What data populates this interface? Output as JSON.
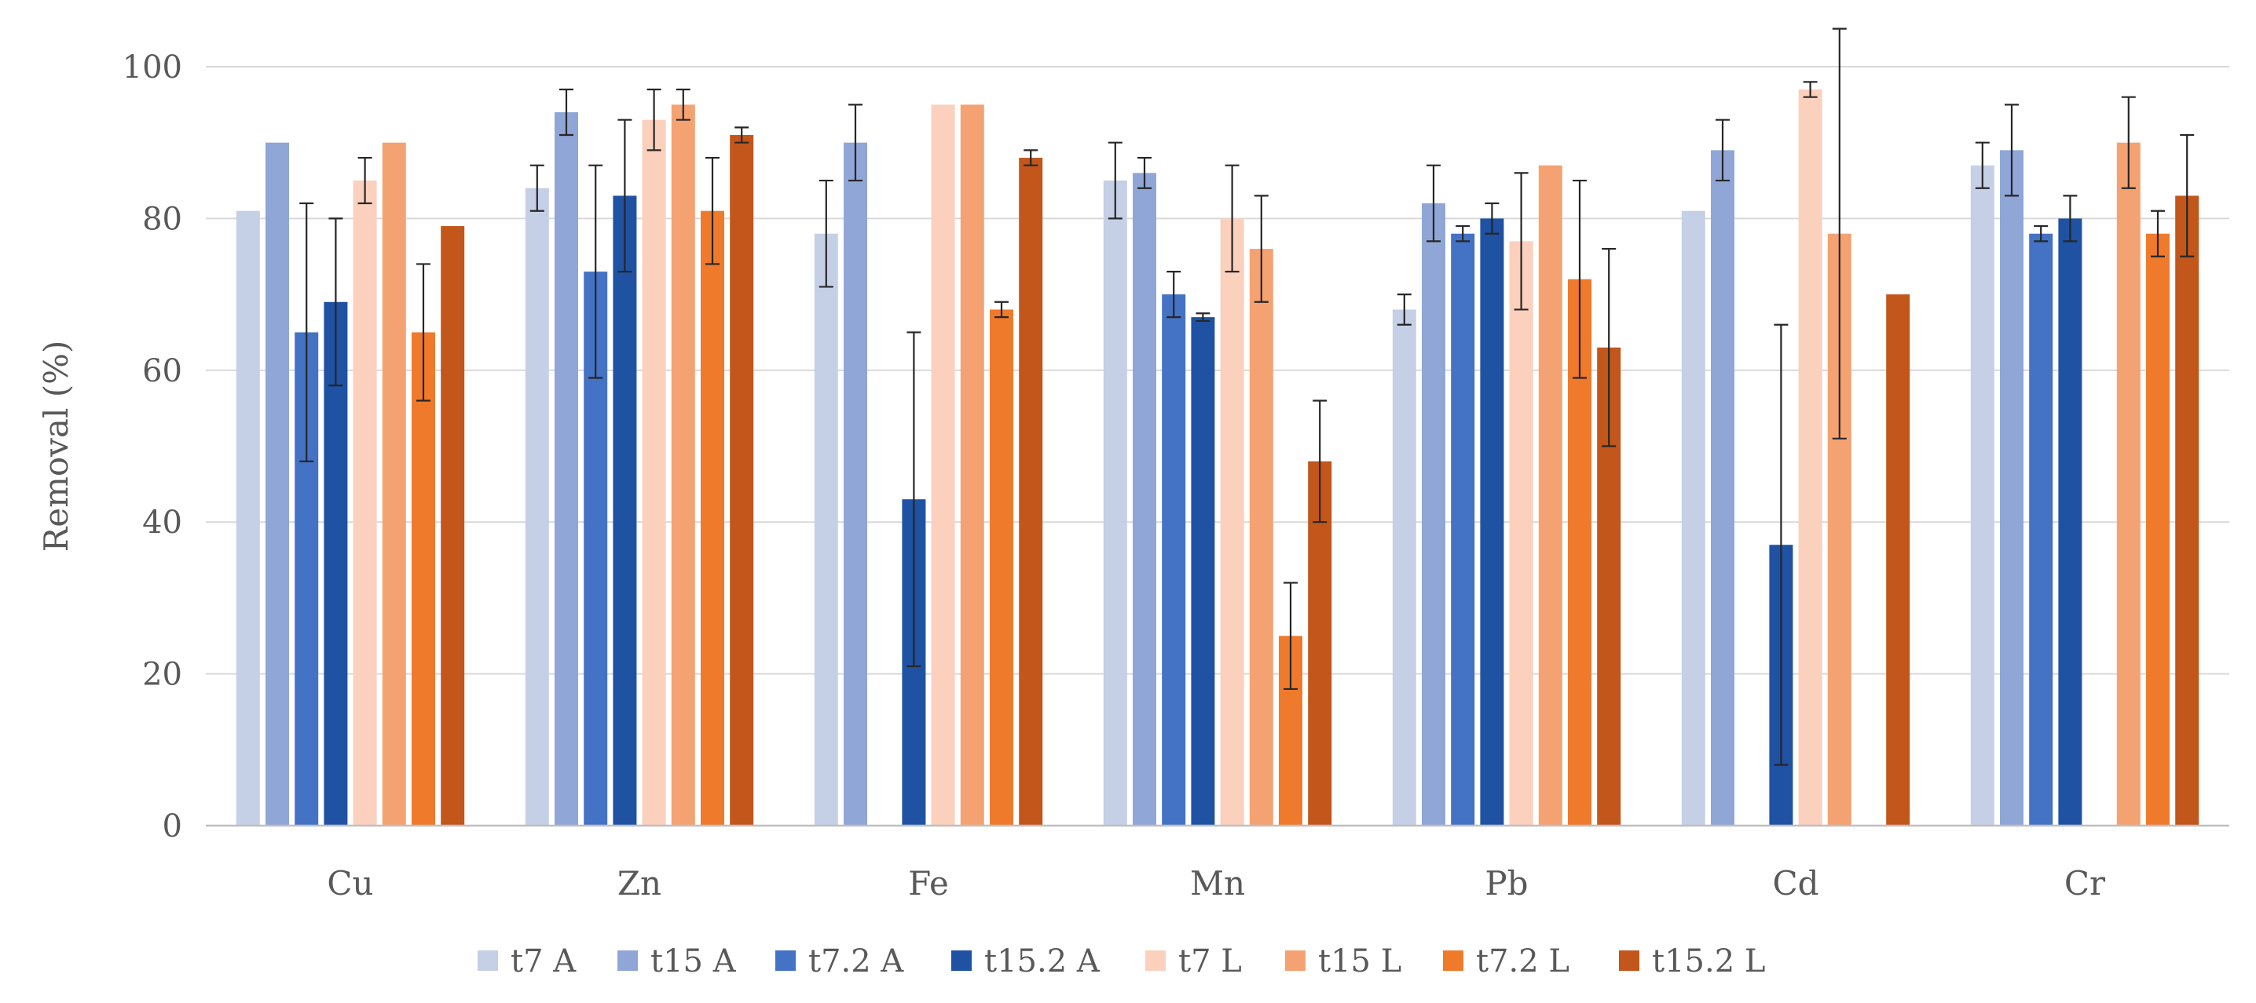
{
  "chart_data": {
    "type": "bar",
    "title": "",
    "xlabel": "",
    "ylabel": "Removal (%)",
    "ylim": [
      0,
      100
    ],
    "yticks": [
      0,
      20,
      40,
      60,
      80,
      100
    ],
    "grid": true,
    "legend_position": "bottom",
    "categories": [
      "Cu",
      "Zn",
      "Fe",
      "Mn",
      "Pb",
      "Cd",
      "Cr"
    ],
    "series": [
      {
        "name": "t7 A",
        "color": "#c5d0e6",
        "values": [
          81,
          84,
          78,
          85,
          68,
          81,
          87
        ],
        "err_low": [
          0,
          3,
          7,
          5,
          2,
          0,
          3
        ],
        "err_high": [
          0,
          3,
          7,
          5,
          2,
          0,
          3
        ]
      },
      {
        "name": "t15 A",
        "color": "#8fa6d6",
        "values": [
          90,
          94,
          90,
          86,
          82,
          89,
          89
        ],
        "err_low": [
          0,
          3,
          5,
          2,
          5,
          4,
          6
        ],
        "err_high": [
          0,
          3,
          5,
          2,
          5,
          4,
          6
        ]
      },
      {
        "name": "t7.2 A",
        "color": "#4472c4",
        "values": [
          65,
          73,
          null,
          70,
          78,
          null,
          78
        ],
        "err_low": [
          17,
          14,
          0,
          3,
          1,
          0,
          1
        ],
        "err_high": [
          17,
          14,
          0,
          3,
          1,
          0,
          1
        ]
      },
      {
        "name": "t15.2 A",
        "color": "#1f52a3",
        "values": [
          69,
          83,
          43,
          67,
          80,
          37,
          80
        ],
        "err_low": [
          11,
          10,
          22,
          0.5,
          2,
          29,
          3
        ],
        "err_high": [
          11,
          10,
          22,
          0.5,
          2,
          29,
          3
        ]
      },
      {
        "name": "t7 L",
        "color": "#fbd0bd",
        "values": [
          85,
          93,
          95,
          80,
          77,
          97,
          null
        ],
        "err_low": [
          3,
          4,
          0,
          7,
          9,
          1,
          0
        ],
        "err_high": [
          3,
          4,
          0,
          7,
          9,
          1,
          0
        ]
      },
      {
        "name": "t15 L",
        "color": "#f5a273",
        "values": [
          90,
          95,
          95,
          76,
          87,
          78,
          90
        ],
        "err_low": [
          0,
          2,
          0,
          7,
          0,
          27,
          6
        ],
        "err_high": [
          0,
          2,
          0,
          7,
          0,
          27,
          6
        ]
      },
      {
        "name": "t7.2 L",
        "color": "#f07a2c",
        "values": [
          65,
          81,
          68,
          25,
          72,
          null,
          78
        ],
        "err_low": [
          9,
          7,
          1,
          7,
          13,
          0,
          3
        ],
        "err_high": [
          9,
          7,
          1,
          7,
          13,
          0,
          3
        ]
      },
      {
        "name": "t15.2 L",
        "color": "#c2561b",
        "values": [
          79,
          91,
          88,
          48,
          63,
          70,
          83
        ],
        "err_low": [
          0,
          1,
          1,
          8,
          13,
          0,
          8
        ],
        "err_high": [
          0,
          1,
          1,
          8,
          13,
          0,
          8
        ]
      }
    ]
  }
}
